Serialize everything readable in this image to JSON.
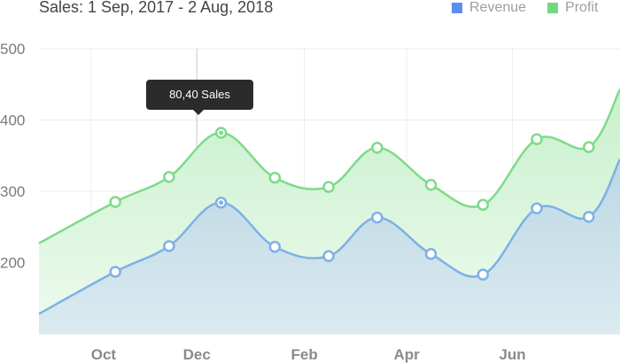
{
  "chart_data": {
    "type": "area",
    "title": "Sales: 1 Sep, 2017 - 2 Aug, 2018",
    "x": [
      "2017-09-01",
      "2017-10-15",
      "2017-11-15",
      "2017-12-15",
      "2018-01-15",
      "2018-02-15",
      "2018-03-15",
      "2018-04-15",
      "2018-05-15",
      "2018-06-15",
      "2018-07-15",
      "2018-08-02"
    ],
    "x_ticks": [
      {
        "label": "Oct",
        "date": "2017-10-01"
      },
      {
        "label": "Dec",
        "date": "2017-12-01"
      },
      {
        "label": "Feb",
        "date": "2018-02-01"
      },
      {
        "label": "Apr",
        "date": "2018-04-01"
      },
      {
        "label": "Jun",
        "date": "2018-06-01"
      }
    ],
    "y_ticks": [
      200,
      300,
      400,
      500
    ],
    "ylim": [
      100,
      500
    ],
    "series": [
      {
        "name": "Revenue",
        "color": "#5b8def",
        "values": [
          128,
          187,
          223,
          284,
          222,
          209,
          263,
          212,
          183,
          276,
          264,
          345
        ]
      },
      {
        "name": "Profit",
        "color": "#6fd97e",
        "values": [
          227,
          285,
          320,
          382,
          319,
          306,
          361,
          309,
          281,
          373,
          362,
          443
        ]
      }
    ],
    "tooltip": {
      "text": "80,40 Sales",
      "point_index": 3
    }
  }
}
